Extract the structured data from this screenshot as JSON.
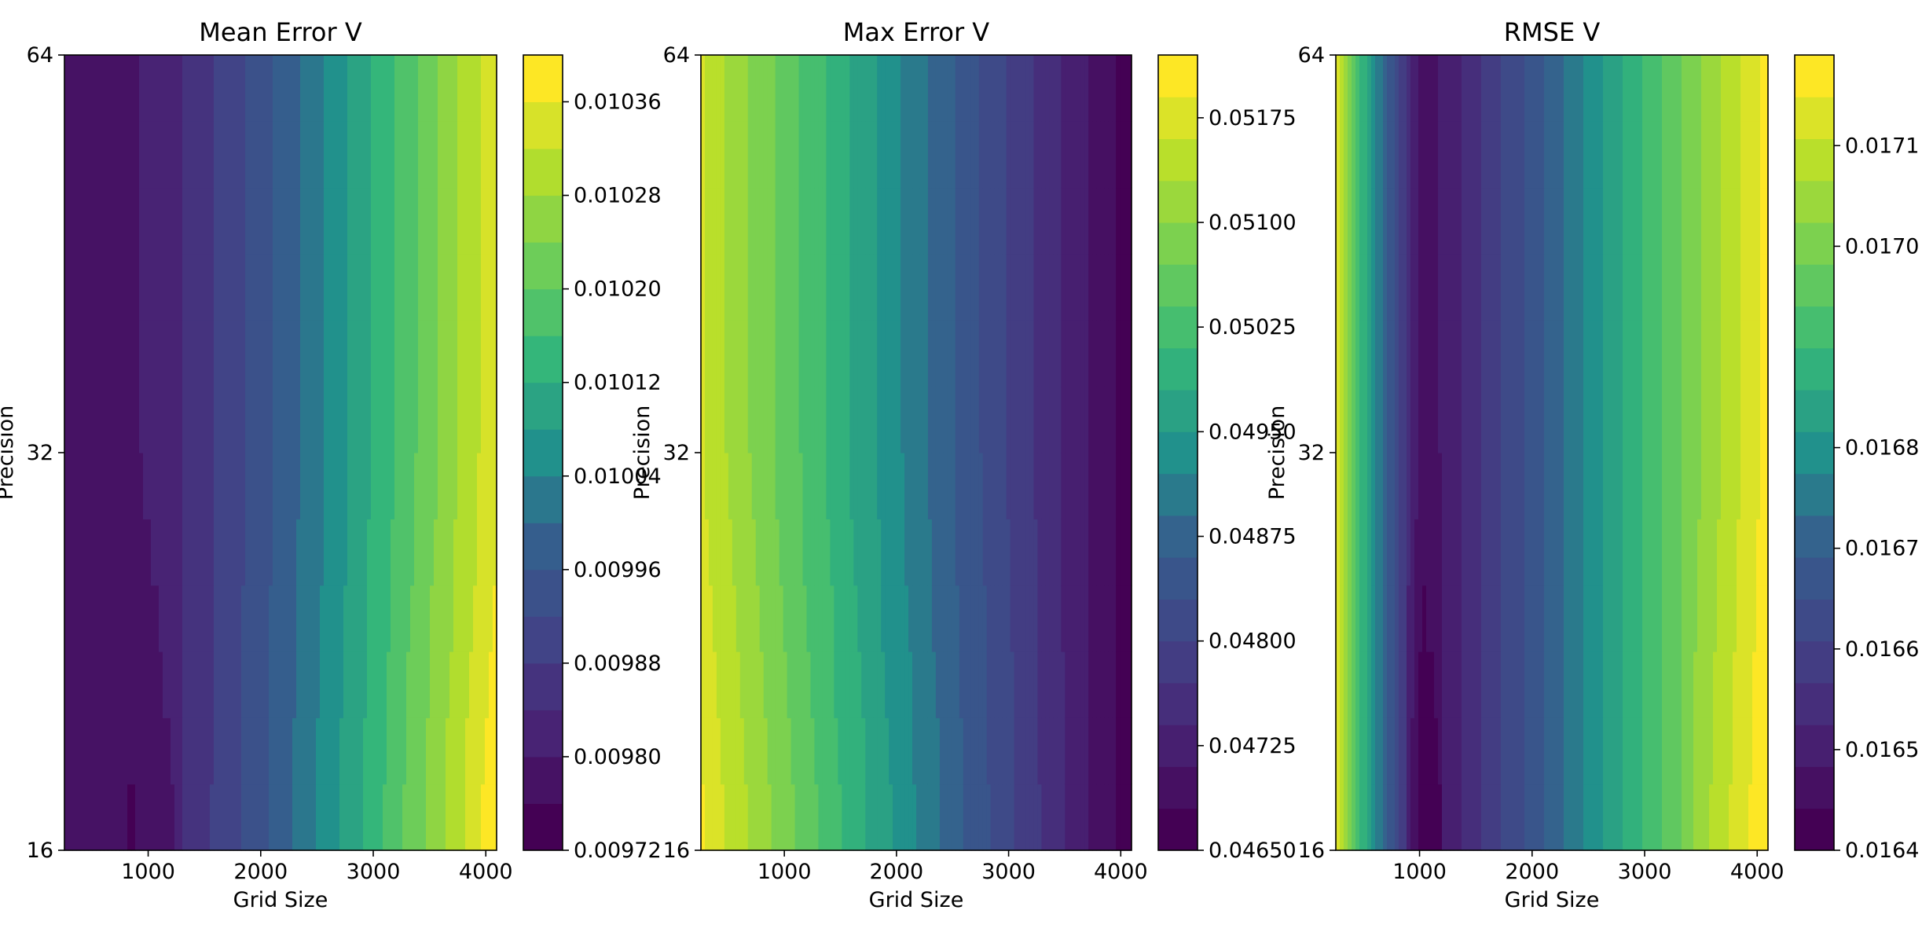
{
  "chart_data": [
    {
      "type": "contour",
      "title": "Mean Error V",
      "xlabel": "Grid Size",
      "ylabel": "Precision",
      "xlim": [
        256,
        4096
      ],
      "x_ticks": [
        1000,
        2000,
        3000,
        4000
      ],
      "y_ticks": [
        16,
        32,
        64
      ],
      "colorbar_ticks": [
        "0.01036",
        "0.01028",
        "0.01020",
        "0.01012",
        "0.01004",
        "0.00996",
        "0.00988",
        "0.00980",
        "0.00972"
      ],
      "colorbar_range": [
        0.00972,
        0.0104
      ],
      "value_range": [
        0.00972,
        0.0104
      ],
      "colorbar_levels": 17,
      "colormap": "viridis",
      "grid": false
    },
    {
      "type": "contour",
      "title": "Max Error V",
      "xlabel": "Grid Size",
      "ylabel": "Precision",
      "xlim": [
        256,
        4096
      ],
      "x_ticks": [
        1000,
        2000,
        3000,
        4000
      ],
      "y_ticks": [
        16,
        32,
        64
      ],
      "colorbar_ticks": [
        "0.05175",
        "0.05100",
        "0.05025",
        "0.04950",
        "0.04875",
        "0.04800",
        "0.04725",
        "0.04650"
      ],
      "colorbar_range": [
        0.0465,
        0.0522
      ],
      "value_range": [
        0.0465,
        0.0522
      ],
      "colorbar_levels": 19,
      "colormap": "viridis",
      "grid": false
    },
    {
      "type": "contour",
      "title": "RMSE V",
      "xlabel": "Grid Size",
      "ylabel": "Precision",
      "xlim": [
        256,
        4096
      ],
      "x_ticks": [
        1000,
        2000,
        3000,
        4000
      ],
      "y_ticks": [
        16,
        32,
        64
      ],
      "colorbar_ticks": [
        "0.0171",
        "0.0170",
        "0.0168",
        "0.0167",
        "0.0166",
        "0.0165",
        "0.0164"
      ],
      "colorbar_range": [
        0.0164,
        0.01719
      ],
      "value_range": [
        0.0164,
        0.01719
      ],
      "colorbar_levels": 19,
      "colormap": "viridis",
      "grid": false
    }
  ]
}
